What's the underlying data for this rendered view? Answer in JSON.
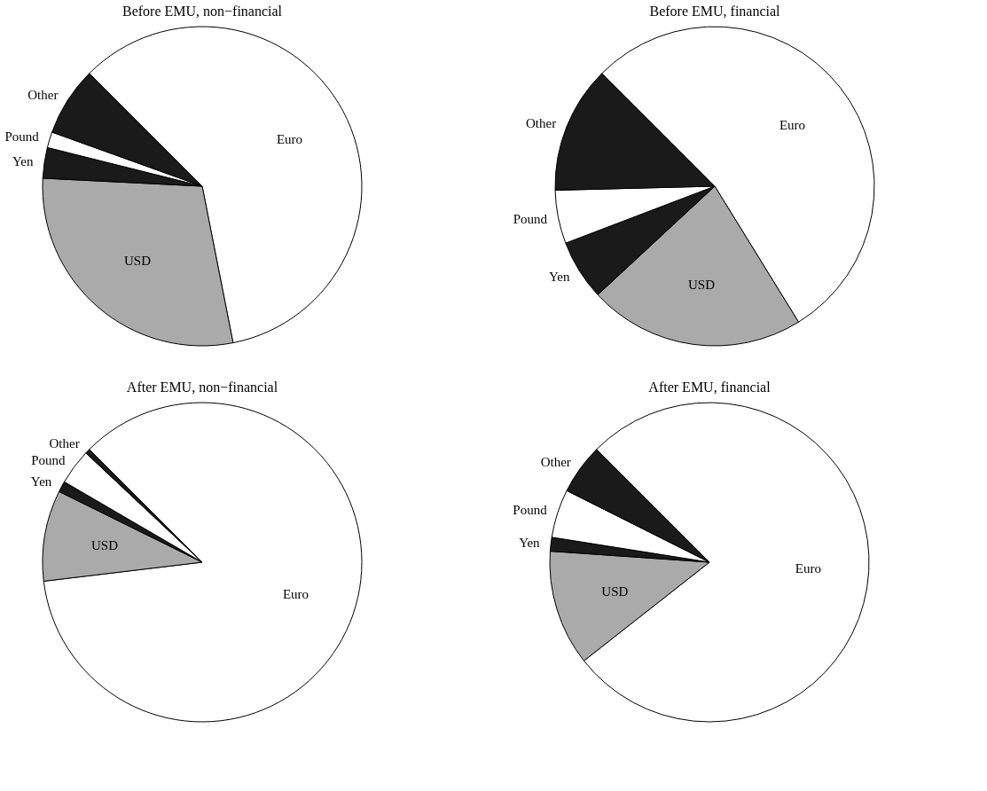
{
  "chart_data": [
    {
      "type": "pie",
      "title": "Before EMU, non−financial",
      "categories": [
        "Euro",
        "USD",
        "Yen",
        "Pound",
        "Other"
      ],
      "values": [
        59.4,
        28.9,
        3.1,
        1.6,
        7.0
      ],
      "colors": [
        "#ffffff",
        "#aaaaaa",
        "#1a1a1a",
        "#ffffff",
        "#1a1a1a"
      ]
    },
    {
      "type": "pie",
      "title": "Before EMU, financial",
      "categories": [
        "Euro",
        "USD",
        "Yen",
        "Pound",
        "Other"
      ],
      "values": [
        53.7,
        21.9,
        6.1,
        5.4,
        12.9
      ],
      "colors": [
        "#ffffff",
        "#aaaaaa",
        "#1a1a1a",
        "#ffffff",
        "#1a1a1a"
      ]
    },
    {
      "type": "pie",
      "title": "After EMU, non−financial",
      "categories": [
        "Euro",
        "USD",
        "Yen",
        "Pound",
        "Other"
      ],
      "values": [
        85.6,
        9.2,
        1.1,
        3.6,
        0.5
      ],
      "colors": [
        "#ffffff",
        "#aaaaaa",
        "#1a1a1a",
        "#ffffff",
        "#1a1a1a"
      ]
    },
    {
      "type": "pie",
      "title": "After EMU, financial",
      "categories": [
        "Euro",
        "USD",
        "Yen",
        "Pound",
        "Other"
      ],
      "values": [
        76.9,
        11.7,
        1.4,
        4.9,
        5.1
      ],
      "colors": [
        "#ffffff",
        "#aaaaaa",
        "#1a1a1a",
        "#ffffff",
        "#1a1a1a"
      ]
    }
  ]
}
